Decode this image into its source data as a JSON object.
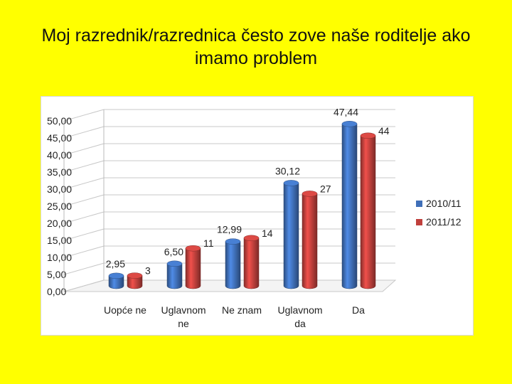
{
  "title_line1": "Moj razrednik/razrednica često zove naše roditelje ako",
  "title_line2": "imamo problem",
  "colors": {
    "background": "#ffff00",
    "series1": "#3f6fb8",
    "series2": "#c0403c"
  },
  "chart_data": {
    "type": "bar",
    "title": "Moj razrednik/razrednica često zove naše roditelje ako imamo problem",
    "categories": [
      [
        "Uopće ne"
      ],
      [
        "Uglavnom",
        "ne"
      ],
      [
        "Ne znam"
      ],
      [
        "Uglavnom",
        "da"
      ],
      [
        "Da"
      ]
    ],
    "series": [
      {
        "name": "2010/11",
        "values": [
          2.95,
          6.5,
          12.99,
          30.12,
          47.44
        ],
        "labels": [
          "2,95",
          "6,50",
          "12,99",
          "30,12",
          "47,44"
        ]
      },
      {
        "name": "2011/12",
        "values": [
          3,
          11,
          14,
          27,
          44
        ],
        "labels": [
          "3",
          "11",
          "14",
          "27",
          "44"
        ]
      }
    ],
    "yticks": [
      "0,00",
      "5,00",
      "10,00",
      "15,00",
      "20,00",
      "25,00",
      "30,00",
      "35,00",
      "40,00",
      "45,00",
      "50,00"
    ],
    "ylim": [
      0,
      50
    ],
    "grid": true,
    "legend": "right"
  }
}
